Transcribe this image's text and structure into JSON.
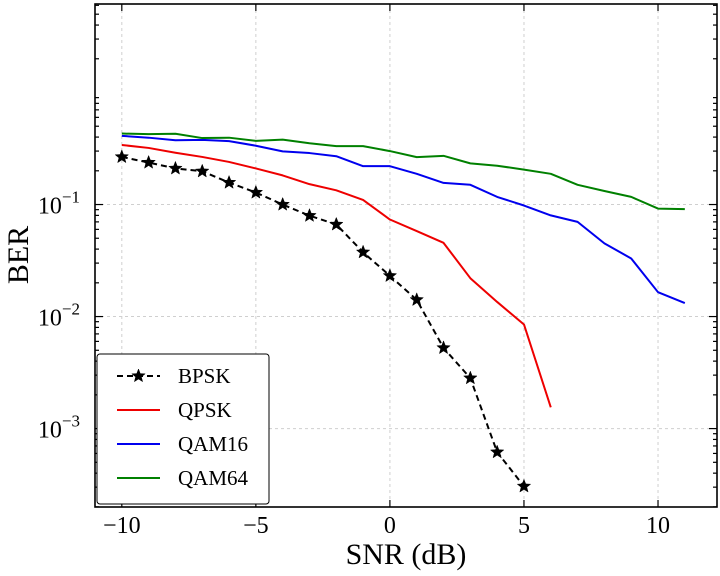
{
  "chart_data": {
    "type": "line",
    "xlabel": "SNR (dB)",
    "ylabel": "BER",
    "xlim": [
      -11,
      12.2
    ],
    "ylim_log10": [
      -3.7,
      0.79
    ],
    "y_scale": "log",
    "grid": true,
    "legend_position": "bottom-left",
    "x_ticks": [
      -10,
      -5,
      0,
      5,
      10
    ],
    "x_tick_labels": [
      "−10",
      "−5",
      "0",
      "5",
      "10"
    ],
    "y_ticks": [
      0.001,
      0.01,
      0.1
    ],
    "y_tick_labels": [
      {
        "base": "10",
        "exp": "−3"
      },
      {
        "base": "10",
        "exp": "−2"
      },
      {
        "base": "10",
        "exp": "−1"
      }
    ],
    "series": [
      {
        "name": "BPSK",
        "color": "#000000",
        "dashed": true,
        "marker": "star",
        "x": [
          -10,
          -9,
          -8,
          -7,
          -6,
          -5,
          -4,
          -3,
          -2,
          -1,
          0,
          1,
          2,
          3,
          4,
          5
        ],
        "y": [
          0.266,
          0.237,
          0.21,
          0.198,
          0.157,
          0.128,
          0.1,
          0.0795,
          0.0664,
          0.0375,
          0.0231,
          0.0141,
          0.00525,
          0.00282,
          0.000616,
          0.000305
        ]
      },
      {
        "name": "QPSK",
        "color": "#ee0000",
        "dashed": false,
        "marker": "none",
        "x": [
          -10,
          -9,
          -8,
          -7,
          -6,
          -5,
          -4,
          -3,
          -2,
          -1,
          0,
          1,
          2,
          3,
          4,
          5,
          6
        ],
        "y": [
          0.34,
          0.32,
          0.29,
          0.266,
          0.24,
          0.21,
          0.182,
          0.152,
          0.134,
          0.11,
          0.0735,
          0.058,
          0.0455,
          0.022,
          0.0135,
          0.0085,
          0.00155
        ]
      },
      {
        "name": "QAM16",
        "color": "#0000ee",
        "dashed": false,
        "marker": "none",
        "x": [
          -10,
          -9,
          -8,
          -7,
          -6,
          -5,
          -4,
          -3,
          -2,
          -1,
          0,
          1,
          2,
          3,
          4,
          5,
          6,
          7,
          8,
          9,
          10,
          11
        ],
        "y": [
          0.41,
          0.395,
          0.375,
          0.378,
          0.368,
          0.335,
          0.298,
          0.288,
          0.27,
          0.22,
          0.22,
          0.188,
          0.156,
          0.15,
          0.117,
          0.098,
          0.08,
          0.07,
          0.045,
          0.033,
          0.0165,
          0.0132
        ]
      },
      {
        "name": "QAM64",
        "color": "#008000",
        "dashed": false,
        "marker": "none",
        "x": [
          -10,
          -9,
          -8,
          -7,
          -6,
          -5,
          -4,
          -3,
          -2,
          -1,
          0,
          1,
          2,
          3,
          4,
          5,
          6,
          7,
          8,
          9,
          10,
          11
        ],
        "y": [
          0.43,
          0.425,
          0.428,
          0.392,
          0.395,
          0.37,
          0.38,
          0.352,
          0.332,
          0.332,
          0.3,
          0.265,
          0.272,
          0.233,
          0.222,
          0.205,
          0.188,
          0.15,
          0.132,
          0.117,
          0.092,
          0.091
        ]
      }
    ]
  }
}
